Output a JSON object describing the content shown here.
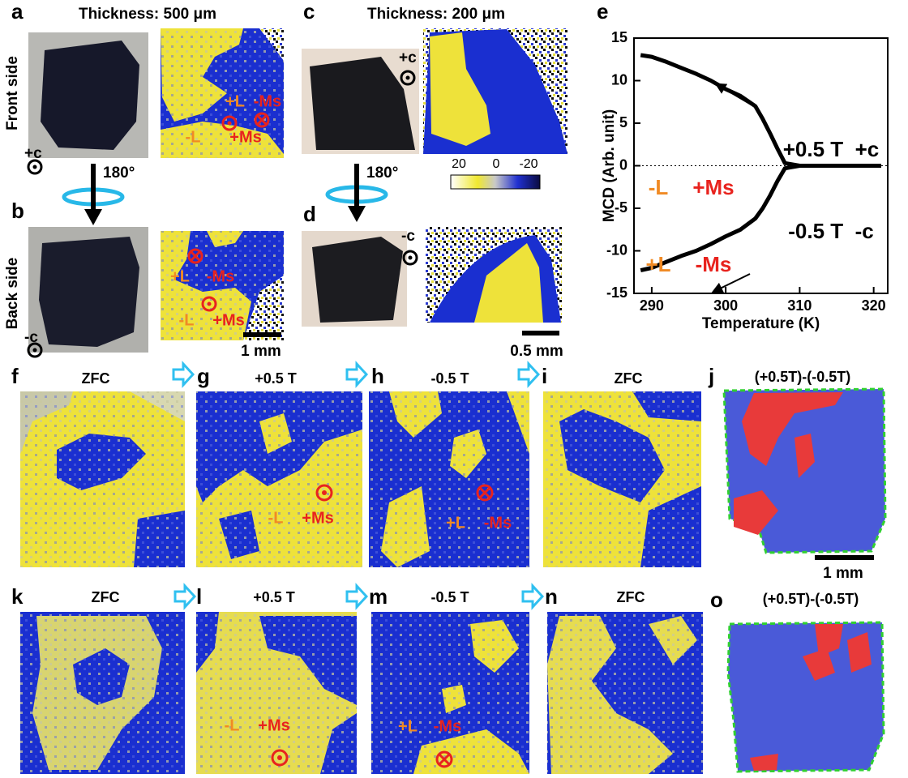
{
  "labels": [
    "a",
    "b",
    "c",
    "d",
    "e",
    "f",
    "g",
    "h",
    "i",
    "j",
    "k",
    "l",
    "m",
    "n",
    "o"
  ],
  "thickness": [
    "Thickness: 500 μm",
    "Thickness: 200 μm"
  ],
  "sides": [
    "Front side",
    "Back side"
  ],
  "axis_marks": [
    "+c",
    "-c",
    "+c",
    "-c"
  ],
  "rotation": [
    "180°",
    "180°"
  ],
  "map_a": [
    "+L",
    "-Ms",
    "-L",
    "+Ms"
  ],
  "map_b": [
    "+L",
    "-Ms",
    "-L",
    "+Ms"
  ],
  "colorbar_ticks": [
    "20",
    "0",
    "-20"
  ],
  "scale_bars": [
    "1 mm",
    "0.5 mm",
    "1 mm"
  ],
  "row_titles": [
    [
      "ZFC",
      "+0.5 T",
      "-0.5 T",
      "ZFC",
      "(+0.5T)-(-0.5T)"
    ],
    [
      "ZFC",
      "+0.5 T",
      "-0.5 T",
      "ZFC",
      "(+0.5T)-(-0.5T)"
    ]
  ],
  "row_annotations": {
    "g": [
      "-L",
      "+Ms"
    ],
    "h": [
      "+L",
      "-Ms"
    ],
    "l": [
      "-L",
      "+Ms"
    ],
    "m": [
      "+L",
      "-Ms"
    ]
  },
  "chart_data": {
    "type": "line",
    "x_label": "Temperature (K)",
    "y_label": "MCD (Arb. unit)",
    "x": [
      288.5,
      290,
      292,
      294,
      296,
      298,
      300,
      302,
      304,
      305,
      306,
      307,
      308,
      310,
      312,
      315,
      318,
      321
    ],
    "series": [
      {
        "color": "#000000",
        "values": [
          13,
          12.8,
          12.2,
          11.5,
          10.8,
          10,
          9,
          8.2,
          7,
          5.5,
          3.8,
          2,
          0.3,
          0,
          0,
          0,
          0,
          0
        ]
      },
      {
        "color": "#000000",
        "values": [
          -12.3,
          -12,
          -11.3,
          -10.6,
          -10,
          -9.2,
          -8.3,
          -7.5,
          -6.2,
          -5,
          -3.5,
          -1.8,
          -0.3,
          0,
          0,
          0,
          0,
          0
        ]
      }
    ],
    "xlim": [
      287.6,
      321.9
    ],
    "ylim": [
      -15,
      15
    ],
    "xticks": [
      290,
      300,
      310,
      320
    ],
    "yticks": [
      -15,
      -10,
      -5,
      0,
      5,
      10,
      15
    ],
    "annotations": [
      "+0.5 T  +c",
      "-0.5 T  -c",
      "-L",
      "+Ms",
      "+L",
      "-Ms"
    ]
  }
}
